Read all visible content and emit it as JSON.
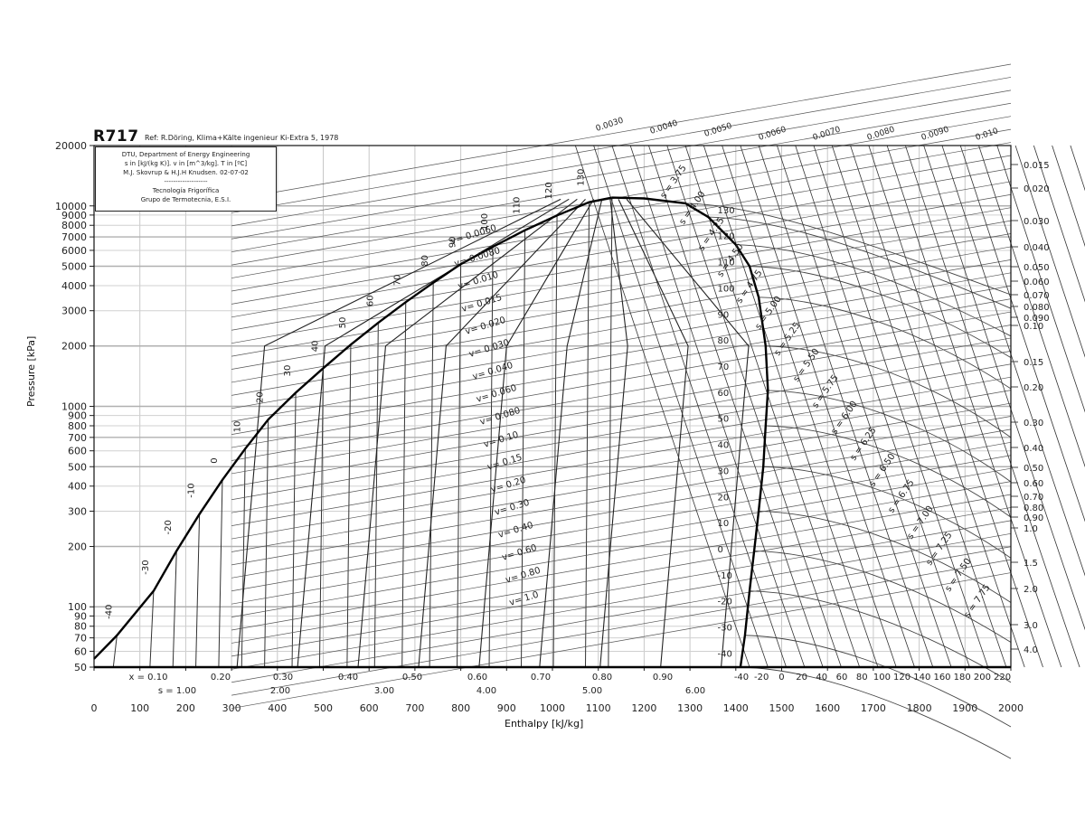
{
  "header": {
    "title": "R717",
    "reference": "Ref: R.Döring, Klima+Kälte ingenieur Ki-Extra 5, 1978"
  },
  "infobox": {
    "line1": "DTU, Department of Energy Engineering",
    "line2": "s in [kJ/(kg K)]. v in [m^3/kg]. T in [ºC]",
    "line3": "M.J. Skovrup & H.J.H Knudsen. 02-07-02",
    "line4": "-------------------",
    "line5": "Tecnología Frigorífica",
    "line6": "Grupo de Termotecnia, E.S.I."
  },
  "axes": {
    "ylabel": "Pressure [kPa]",
    "xlabel": "Enthalpy [kJ/kg]"
  },
  "chart_data": {
    "type": "line",
    "title": "R717",
    "subtitle": "Ref: R.Döring, Klima+Kälte ingenieur Ki-Extra 5, 1978",
    "xlabel": "Enthalpy [kJ/kg]",
    "ylabel": "Pressure [kPa]",
    "xlim": [
      0,
      2000
    ],
    "ylim": [
      50,
      20000
    ],
    "yscale": "log",
    "grid": true,
    "x_ticks": [
      0,
      100,
      200,
      300,
      400,
      500,
      600,
      700,
      800,
      900,
      1000,
      1100,
      1200,
      1300,
      1400,
      1500,
      1600,
      1700,
      1800,
      1900,
      2000
    ],
    "y_ticks": [
      50,
      60,
      70,
      80,
      90,
      100,
      200,
      300,
      400,
      500,
      600,
      700,
      800,
      900,
      1000,
      2000,
      3000,
      4000,
      5000,
      6000,
      7000,
      8000,
      9000,
      10000,
      20000
    ],
    "quality_labels": [
      "x = 0.10",
      "0.20",
      "0.30",
      "0.40",
      "0.50",
      "0.60",
      "0.70",
      "0.80",
      "0.90"
    ],
    "entropy_bottom_labels": [
      "s = 1.00",
      "2.00",
      "3.00",
      "4.00",
      "5.00",
      "6.00"
    ],
    "superheat_temp_labels": [
      "-40",
      "-20",
      "0",
      "20",
      "40",
      "60",
      "80",
      "100",
      "120",
      "140",
      "160",
      "180",
      "200",
      "220"
    ],
    "right_volume_labels": [
      "0.015",
      "0.020",
      "0.030",
      "0.040",
      "0.050",
      "0.060",
      "0.070",
      "0.080",
      "0.090",
      "0.10",
      "0.15",
      "0.20",
      "0.30",
      "0.40",
      "0.50",
      "0.60",
      "0.70",
      "0.80",
      "0.90",
      "1.0",
      "1.5",
      "2.0",
      "3.0",
      "4.0"
    ],
    "top_volume_labels": [
      "0.0030",
      "0.0040",
      "0.0050",
      "0.0060",
      "0.0070",
      "0.0080",
      "0.0090",
      "0.010"
    ],
    "isochore_labels": [
      "v= 0.0060",
      "v= 0.0080",
      "v= 0.010",
      "v= 0.015",
      "v= 0.020",
      "v= 0.030",
      "v= 0.040",
      "v= 0.060",
      "v= 0.080",
      "v= 0.10",
      "v= 0.15",
      "v= 0.20",
      "v= 0.30",
      "v= 0.40",
      "v= 0.60",
      "v= 0.80",
      "v= 1.0"
    ],
    "isentrope_labels": [
      "s = 3.75",
      "s = 4.00",
      "s = 4.25",
      "s = 4.50",
      "s = 4.75",
      "s = 5.00",
      "s = 5.25",
      "s = 5.50",
      "s = 5.75",
      "s = 6.00",
      "s = 6.25",
      "s = 6.50",
      "s = 6.75",
      "s = 7.00",
      "s = 7.25",
      "s = 7.50",
      "s = 7.75"
    ],
    "series": [
      {
        "name": "saturated liquid",
        "points": [
          [
            0,
            55
          ],
          [
            50,
            72
          ],
          [
            130,
            120
          ],
          [
            180,
            190
          ],
          [
            230,
            290
          ],
          [
            280,
            430
          ],
          [
            330,
            615
          ],
          [
            380,
            860
          ],
          [
            440,
            1170
          ],
          [
            500,
            1550
          ],
          [
            560,
            2030
          ],
          [
            620,
            2610
          ],
          [
            680,
            3310
          ],
          [
            740,
            4140
          ],
          [
            800,
            5120
          ],
          [
            870,
            6250
          ],
          [
            940,
            7560
          ],
          [
            1010,
            8960
          ],
          [
            1080,
            10430
          ],
          [
            1130,
            11000
          ]
        ]
      },
      {
        "name": "saturated vapor",
        "points": [
          [
            1130,
            11000
          ],
          [
            1200,
            10900
          ],
          [
            1290,
            10300
          ],
          [
            1340,
            8800
          ],
          [
            1400,
            6400
          ],
          [
            1430,
            5000
          ],
          [
            1450,
            3500
          ],
          [
            1465,
            2000
          ],
          [
            1470,
            1200
          ],
          [
            1465,
            800
          ],
          [
            1460,
            500
          ],
          [
            1450,
            300
          ],
          [
            1440,
            190
          ],
          [
            1430,
            120
          ],
          [
            1420,
            72
          ],
          [
            1410,
            50
          ]
        ]
      },
      {
        "name": "isotherm labels (saturation, °C)",
        "liquid_side": [
          -40,
          -30,
          -20,
          -10,
          0,
          10,
          20,
          30,
          40,
          50,
          60,
          70,
          80,
          90,
          100,
          110,
          120,
          130
        ],
        "vapor_side": [
          -40,
          -30,
          -20,
          -10,
          0,
          10,
          20,
          30,
          40,
          50,
          60,
          70,
          80,
          90,
          100,
          110,
          120,
          130
        ]
      }
    ]
  }
}
